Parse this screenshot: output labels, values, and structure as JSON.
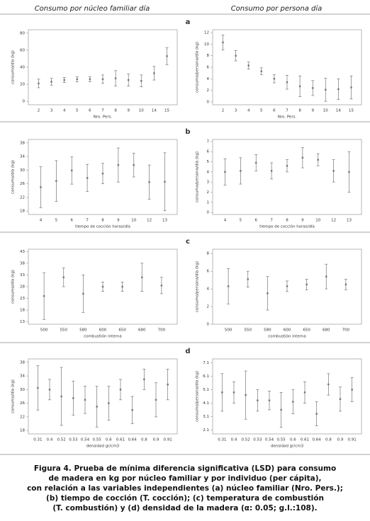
{
  "headers": [
    "Consumo por núcleo familiar día",
    "Consumo por persona día"
  ],
  "panel_labels": [
    "a",
    "b",
    "c",
    "d"
  ],
  "chart_data": [
    {
      "type": "errorbar",
      "ylabel": "consumo/día (kg)",
      "xlabel": "Nro. Pers.",
      "categories": [
        "2",
        "3",
        "4",
        "5",
        "6",
        "7",
        "8",
        "9",
        "10",
        "14",
        "15"
      ],
      "values": [
        21,
        23,
        25,
        26,
        26,
        26,
        27,
        25,
        24,
        33,
        53
      ],
      "errors": [
        5,
        4,
        3,
        3,
        3,
        5,
        9,
        7,
        7,
        8,
        10
      ],
      "ylim": [
        -4,
        84
      ],
      "yticks": [
        0,
        20,
        40,
        60,
        80
      ],
      "color": "#777777"
    },
    {
      "type": "errorbar",
      "ylabel": "consumo/persona/día (kg)",
      "xlabel": "Nro. Pers.",
      "categories": [
        "2",
        "3",
        "4",
        "5",
        "6",
        "7",
        "8",
        "9",
        "10",
        "14",
        "15"
      ],
      "values": [
        10.3,
        8,
        6.3,
        5.3,
        4,
        3.4,
        2.7,
        2.4,
        2.1,
        2.2,
        2.5
      ],
      "errors": [
        1.3,
        0.9,
        0.6,
        0.6,
        0.7,
        1.2,
        1.8,
        1.3,
        2,
        1.8,
        2
      ],
      "ylim": [
        -0.5,
        12.5
      ],
      "yticks": [
        0,
        2,
        4,
        6,
        8,
        10,
        12
      ],
      "color": "#777777"
    },
    {
      "type": "errorbar",
      "ylabel": "consumo/día (kg)",
      "xlabel": "tiempo de cocción horas/día",
      "categories": [
        "4",
        "5",
        "6",
        "7",
        "8",
        "9",
        "10",
        "12",
        "13"
      ],
      "values": [
        25,
        26.8,
        29.9,
        27.7,
        29,
        31.5,
        31.5,
        26.5,
        26.6
      ],
      "errors": [
        6,
        6,
        4,
        4,
        3,
        5,
        3.5,
        5,
        8.5
      ],
      "ylim": [
        17,
        39
      ],
      "yticks": [
        18,
        22,
        26,
        30,
        34,
        38
      ],
      "color": "#777777"
    },
    {
      "type": "errorbar",
      "ylabel": "consumo/persona/día (kg)",
      "xlabel": "tiempo de cocción horas/día",
      "categories": [
        "4",
        "5",
        "6",
        "7",
        "8",
        "9",
        "10",
        "12",
        "13"
      ],
      "values": [
        4,
        4.1,
        4.9,
        4.1,
        4.6,
        5.4,
        5.2,
        4.1,
        4
      ],
      "errors": [
        1.3,
        1.3,
        0.8,
        0.8,
        0.6,
        1,
        0.6,
        1.1,
        2
      ],
      "ylim": [
        -0.2,
        7.2
      ],
      "yticks": [
        0,
        1,
        2,
        3,
        4,
        5,
        6,
        7
      ],
      "color": "#777777"
    },
    {
      "type": "errorbar",
      "ylabel": "consumo/día (kg)",
      "xlabel": "combustión interna",
      "categories": [
        "500",
        "550",
        "580",
        "600",
        "650",
        "680",
        "700"
      ],
      "values": [
        24,
        32,
        25,
        28,
        28,
        32,
        28.5
      ],
      "errors": [
        10,
        4,
        8,
        2,
        2,
        6,
        3.5
      ],
      "ylim": [
        12,
        44
      ],
      "yticks": [
        13,
        18,
        23,
        28,
        33,
        38,
        43
      ],
      "color": "#777777"
    },
    {
      "type": "errorbar",
      "ylabel": "consumo/persona/día (kg)",
      "xlabel": "combustión interna",
      "categories": [
        "500",
        "550",
        "580",
        "600",
        "650",
        "680",
        "700"
      ],
      "values": [
        4.3,
        5.1,
        3.5,
        4.3,
        4.5,
        5.4,
        4.5
      ],
      "errors": [
        2,
        0.9,
        1.9,
        0.6,
        0.6,
        1.4,
        0.6
      ],
      "ylim": [
        0,
        8.5
      ],
      "yticks": [
        0,
        2,
        4,
        6,
        8
      ],
      "color": "#777777"
    },
    {
      "type": "errorbar",
      "ylabel": "consumo/día (kg)",
      "xlabel": "densidad gr/cm3",
      "categories": [
        "0.31",
        "0.4",
        "0.52",
        "0.53",
        "0.54",
        "0.55",
        "0.6",
        "0.61",
        "0.64",
        "0.8",
        "0.9",
        "0.91"
      ],
      "values": [
        30.5,
        30,
        28,
        27.5,
        27,
        25,
        26,
        30,
        24,
        33,
        27,
        31.5
      ],
      "errors": [
        6.5,
        3,
        8.5,
        5,
        4,
        6,
        5,
        3,
        4,
        3,
        5,
        4.5
      ],
      "ylim": [
        17,
        39
      ],
      "yticks": [
        18,
        22,
        26,
        30,
        34,
        38
      ],
      "color": "#777777"
    },
    {
      "type": "errorbar",
      "ylabel": "consumo/persona/día (kg)",
      "xlabel": "densidad gr/cm3",
      "categories": [
        "0.31",
        "0.4",
        "0.52",
        "0.53",
        "0.54",
        "0.55",
        "0.6",
        "0.61",
        "0.64",
        "0.8",
        "0.9",
        "0.91"
      ],
      "values": [
        4.9,
        4.9,
        4.7,
        4.3,
        4.3,
        3.6,
        4.2,
        4.9,
        3.3,
        5.5,
        4.4,
        5.1
      ],
      "errors": [
        1.4,
        0.8,
        1.8,
        0.8,
        0.7,
        1.3,
        0.9,
        0.8,
        0.9,
        0.8,
        0.9,
        0.9
      ],
      "ylim": [
        1.8,
        7.4
      ],
      "yticks": [
        2.1,
        3.1,
        4.1,
        5.1,
        6.1,
        7.1
      ],
      "color": "#777777"
    }
  ],
  "caption": [
    "Figura 4. Prueba de mínima diferencia significativa (LSD) para consumo",
    "de madera en kg por núcleo familiar y por individuo (per cápita),",
    "con relación a las variables independientes (a) núcleo familiar (Nro. Pers.);",
    "(b) tiempo de cocción (T. cocción); (c) temperatura de combustión",
    "(T. combustión) y (d) densidad de la madera (α: 0.05; g.l.:108)."
  ]
}
